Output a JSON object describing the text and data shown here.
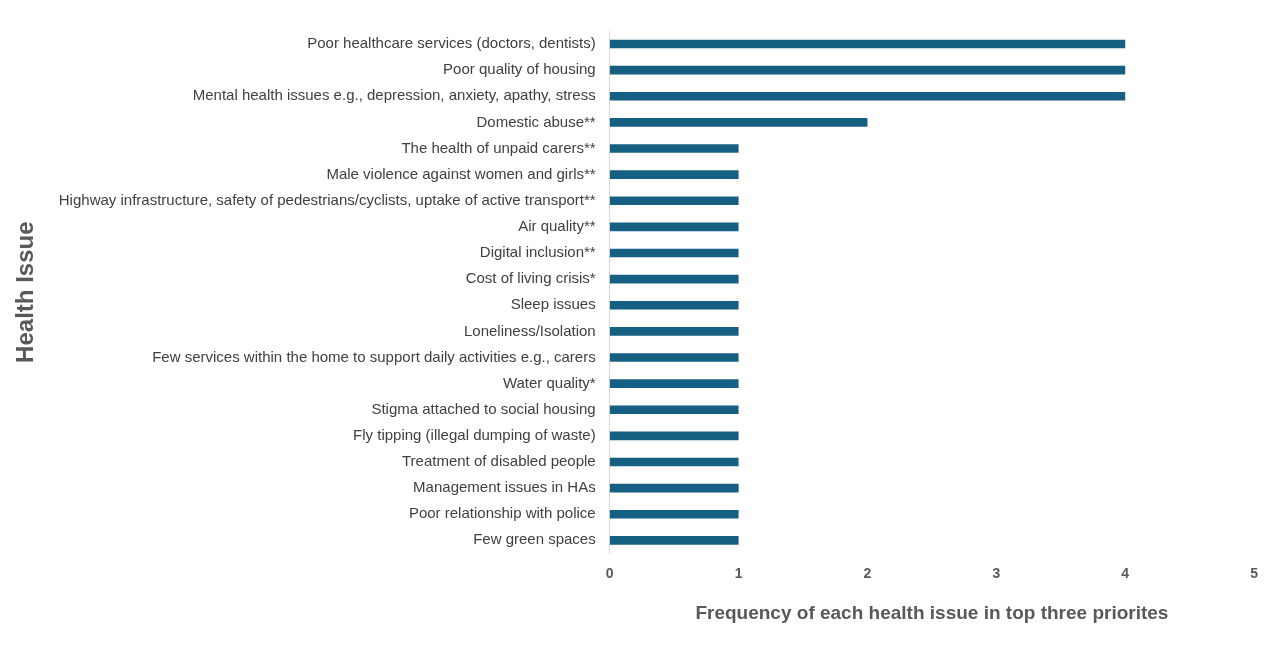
{
  "chart_data": {
    "type": "bar",
    "orientation": "horizontal",
    "xlabel": "Frequency of each health issue in top three priorites",
    "ylabel": "Health Issue",
    "categories": [
      "Poor healthcare services (doctors, dentists)",
      "Poor quality of housing",
      "Mental health issues e.g., depression, anxiety, apathy, stress",
      "Domestic abuse**",
      "The health of unpaid carers**",
      "Male violence against women and girls**",
      "Highway infrastructure, safety of pedestrians/cyclists, uptake of active transport**",
      "Air quality**",
      "Digital inclusion**",
      "Cost of living crisis*",
      "Sleep issues",
      "Loneliness/Isolation",
      "Few services within the home to support daily activities e.g., carers",
      "Water quality*",
      "Stigma attached to social housing",
      "Fly tipping (illegal dumping of waste)",
      "Treatment of disabled people",
      "Management issues in HAs",
      "Poor relationship with police",
      "Few green spaces"
    ],
    "values": [
      4,
      4,
      4,
      2,
      1,
      1,
      1,
      1,
      1,
      1,
      1,
      1,
      1,
      1,
      1,
      1,
      1,
      1,
      1,
      1
    ],
    "color": "#155f82",
    "xlim": [
      0,
      5
    ],
    "xticks": [
      0,
      1,
      2,
      3,
      4,
      5
    ],
    "grid": false,
    "legend": false
  }
}
